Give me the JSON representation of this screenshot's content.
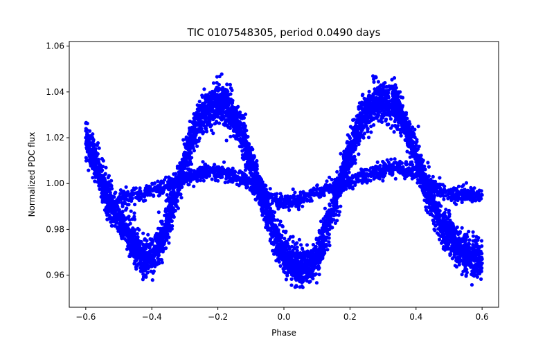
{
  "chart_data": {
    "type": "scatter",
    "title": "TIC 0107548305, period 0.0490 days",
    "xlabel": "Phase",
    "ylabel": "Normalized PDC flux",
    "xlim": [
      -0.65,
      0.65
    ],
    "ylim": [
      0.946,
      1.062
    ],
    "xticks": [
      -0.6,
      -0.4,
      -0.2,
      0.0,
      0.2,
      0.4,
      0.6
    ],
    "xtick_labels": [
      "−0.6",
      "−0.4",
      "−0.2",
      "0.0",
      "0.2",
      "0.4",
      "0.6"
    ],
    "yticks": [
      0.96,
      0.98,
      1.0,
      1.02,
      1.04,
      1.06
    ],
    "ytick_labels": [
      "0.96",
      "0.98",
      "1.00",
      "1.02",
      "1.04",
      "1.06"
    ],
    "grid": false,
    "marker_color": "#0000ff",
    "series": [
      {
        "x": [
          -0.6,
          -0.58,
          -0.56,
          -0.54,
          -0.52,
          -0.5,
          -0.48,
          -0.46,
          -0.44,
          -0.42,
          -0.4,
          -0.38,
          -0.36,
          -0.34,
          -0.32,
          -0.3,
          -0.28,
          -0.26,
          -0.24,
          -0.22,
          -0.2,
          -0.18,
          -0.16,
          -0.14,
          -0.12,
          -0.1,
          -0.08,
          -0.06,
          -0.04,
          -0.02,
          0.0,
          0.02,
          0.04,
          0.06,
          0.08,
          0.1,
          0.12,
          0.14,
          0.16,
          0.18,
          0.2,
          0.22,
          0.24,
          0.26,
          0.28,
          0.3,
          0.32,
          0.34,
          0.36,
          0.38,
          0.4,
          0.42,
          0.44,
          0.46,
          0.48,
          0.5,
          0.52,
          0.54,
          0.56,
          0.58,
          0.6
        ],
        "y": [
          1.02,
          1.012,
          1.004,
          0.996,
          0.99,
          0.985,
          0.98,
          0.975,
          0.97,
          0.968,
          0.968,
          0.972,
          0.98,
          0.99,
          1.0,
          1.01,
          1.018,
          1.026,
          1.031,
          1.034,
          1.035,
          1.034,
          1.031,
          1.026,
          1.018,
          1.008,
          1.0,
          0.992,
          0.983,
          0.975,
          0.97,
          0.966,
          0.964,
          0.963,
          0.964,
          0.968,
          0.975,
          0.985,
          0.995,
          1.005,
          1.014,
          1.022,
          1.029,
          1.033,
          1.036,
          1.037,
          1.036,
          1.033,
          1.028,
          1.02,
          1.012,
          1.003,
          0.995,
          0.988,
          0.982,
          0.977,
          0.973,
          0.97,
          0.968,
          0.967,
          0.967
        ]
      },
      {
        "x": [
          -0.5,
          -0.48,
          -0.46,
          -0.44,
          -0.42,
          -0.4,
          -0.38,
          -0.36,
          -0.34,
          -0.32,
          -0.3,
          -0.28,
          -0.26,
          -0.24,
          -0.22,
          -0.2,
          -0.18,
          -0.16,
          -0.14,
          -0.12,
          -0.1,
          -0.08,
          -0.06,
          -0.04,
          -0.02,
          0.0,
          0.02,
          0.04,
          0.06,
          0.08,
          0.1,
          0.12,
          0.14,
          0.16,
          0.18,
          0.2,
          0.22,
          0.24,
          0.26,
          0.28,
          0.3,
          0.32,
          0.34,
          0.36,
          0.38,
          0.4,
          0.42,
          0.44,
          0.46,
          0.48,
          0.5,
          0.52,
          0.54,
          0.56,
          0.58,
          0.6
        ],
        "y": [
          0.993,
          0.994,
          0.995,
          0.995,
          0.996,
          0.997,
          0.998,
          0.999,
          1.0,
          1.001,
          1.002,
          1.003,
          1.004,
          1.005,
          1.005,
          1.005,
          1.005,
          1.004,
          1.003,
          1.002,
          1.0,
          0.998,
          0.996,
          0.994,
          0.993,
          0.992,
          0.992,
          0.993,
          0.994,
          0.995,
          0.996,
          0.997,
          0.998,
          0.999,
          1.0,
          1.001,
          1.002,
          1.003,
          1.004,
          1.005,
          1.006,
          1.007,
          1.007,
          1.006,
          1.005,
          1.004,
          1.002,
          1.0,
          0.998,
          0.997,
          0.996,
          0.995,
          0.995,
          0.995,
          0.995,
          0.995
        ]
      }
    ]
  }
}
